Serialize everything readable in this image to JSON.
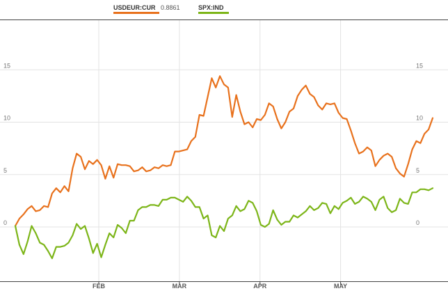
{
  "chart_data": {
    "type": "line",
    "title": "",
    "xlabel": "",
    "ylabel": "",
    "ylim": [
      -5,
      20
    ],
    "grid": true,
    "legend": {
      "placement": "top-left"
    },
    "y_ticks": [
      "0",
      "5",
      "10",
      "15"
    ],
    "x_ticks": [
      "FEB",
      "MAR",
      "APR",
      "MAY"
    ],
    "colors": {
      "usdeur": "#e8711c",
      "spx": "#7cb518",
      "grid": "#e3e3e3",
      "frame": "#444444"
    },
    "series": [
      {
        "name": "USDEUR:CUR",
        "last_value": "0.8861",
        "values": [
          0.1,
          0.8,
          1.2,
          1.7,
          2.0,
          1.5,
          1.6,
          2.0,
          1.9,
          3.2,
          3.7,
          3.3,
          3.9,
          3.4,
          5.6,
          7.0,
          6.7,
          5.5,
          6.3,
          6.0,
          6.4,
          5.9,
          4.6,
          5.8,
          4.7,
          6.0,
          5.9,
          5.9,
          5.8,
          5.3,
          5.4,
          5.7,
          5.3,
          5.4,
          5.7,
          5.6,
          5.9,
          5.8,
          5.9,
          7.2,
          7.2,
          7.3,
          7.4,
          8.2,
          8.6,
          10.7,
          10.6,
          12.4,
          14.2,
          13.3,
          14.4,
          13.6,
          13.3,
          10.5,
          12.6,
          11.0,
          9.8,
          10.0,
          9.5,
          10.3,
          10.2,
          10.7,
          11.8,
          11.5,
          10.3,
          9.4,
          10.0,
          11.0,
          11.3,
          12.5,
          13.1,
          13.5,
          12.7,
          12.4,
          11.6,
          11.2,
          11.8,
          11.7,
          11.8,
          10.9,
          10.4,
          10.3,
          9.2,
          8.0,
          7.0,
          7.2,
          7.6,
          7.3,
          5.8,
          6.4,
          6.8,
          7.0,
          6.7,
          5.6,
          5.1,
          4.8,
          6.0,
          7.4,
          8.2,
          8.0,
          8.9,
          9.3,
          10.4
        ]
      },
      {
        "name": "SPX:IND",
        "last_value": "",
        "values": [
          0.1,
          -1.7,
          -2.6,
          -1.4,
          0.1,
          -0.6,
          -1.5,
          -1.7,
          -2.3,
          -3.0,
          -1.9,
          -1.9,
          -1.8,
          -1.5,
          -0.8,
          0.3,
          -0.2,
          0.1,
          -1.1,
          -2.5,
          -1.6,
          -2.9,
          -1.7,
          -0.6,
          -1.0,
          0.2,
          -0.1,
          -0.6,
          0.6,
          0.6,
          1.6,
          1.9,
          1.9,
          2.1,
          2.1,
          2.0,
          2.6,
          2.6,
          2.8,
          2.8,
          2.6,
          2.4,
          2.9,
          2.5,
          1.9,
          1.9,
          0.8,
          1.1,
          -0.8,
          -1.0,
          0.1,
          -0.4,
          0.8,
          1.1,
          2.0,
          1.5,
          1.7,
          2.5,
          2.3,
          1.5,
          0.2,
          0.0,
          0.3,
          1.6,
          0.7,
          0.2,
          0.5,
          0.5,
          1.1,
          0.9,
          1.2,
          1.5,
          2.0,
          1.6,
          1.8,
          2.3,
          2.2,
          1.3,
          2.0,
          1.7,
          2.3,
          2.5,
          2.8,
          2.2,
          2.4,
          2.9,
          2.7,
          2.4,
          1.6,
          2.6,
          2.9,
          1.8,
          1.4,
          1.6,
          2.7,
          2.3,
          2.2,
          3.3,
          3.3,
          3.6,
          3.6,
          3.5,
          3.7
        ]
      }
    ]
  }
}
